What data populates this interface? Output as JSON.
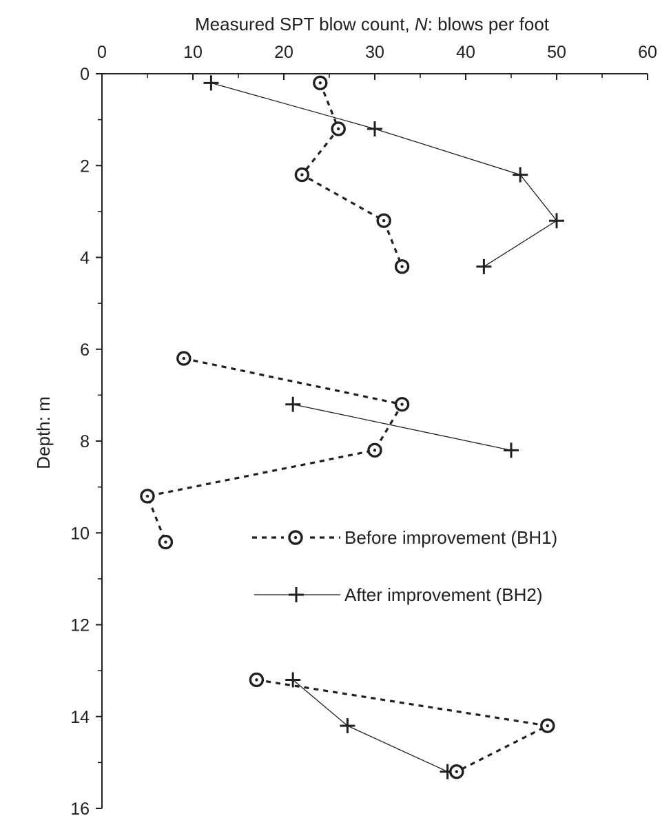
{
  "chart_data": {
    "type": "scatter",
    "xlabel_prefix": "Measured SPT blow count, ",
    "xlabel_italic": "N",
    "xlabel_suffix": ": blows per foot",
    "ylabel": "Depth: m",
    "xlim": [
      0,
      60
    ],
    "ylim": [
      0,
      16
    ],
    "y_inverted": true,
    "x_axis_position": "top",
    "x_ticks": [
      0,
      10,
      20,
      30,
      40,
      50,
      60
    ],
    "y_ticks": [
      0,
      2,
      4,
      6,
      8,
      10,
      12,
      14,
      16
    ],
    "grid": false,
    "legend_position": "center-right",
    "series": [
      {
        "name": "Before improvement (BH1)",
        "marker": "circle",
        "line": "dashed",
        "segments": [
          {
            "x": [
              24,
              26,
              22,
              31,
              33
            ],
            "y": [
              0.2,
              1.2,
              2.2,
              3.2,
              4.2
            ]
          },
          {
            "x": [
              9,
              33,
              30,
              5,
              7
            ],
            "y": [
              6.2,
              7.2,
              8.2,
              9.2,
              10.2
            ]
          },
          {
            "x": [
              17,
              49,
              39
            ],
            "y": [
              13.2,
              14.2,
              15.2
            ]
          }
        ]
      },
      {
        "name": "After improvement (BH2)",
        "marker": "plus",
        "line": "solid",
        "segments": [
          {
            "x": [
              12,
              30,
              46,
              50,
              42
            ],
            "y": [
              0.2,
              1.2,
              2.2,
              3.2,
              4.2
            ]
          },
          {
            "x": [
              21,
              45
            ],
            "y": [
              7.2,
              8.2
            ]
          },
          {
            "x": [
              21,
              27,
              38
            ],
            "y": [
              13.2,
              14.2,
              15.2
            ]
          }
        ]
      }
    ]
  }
}
